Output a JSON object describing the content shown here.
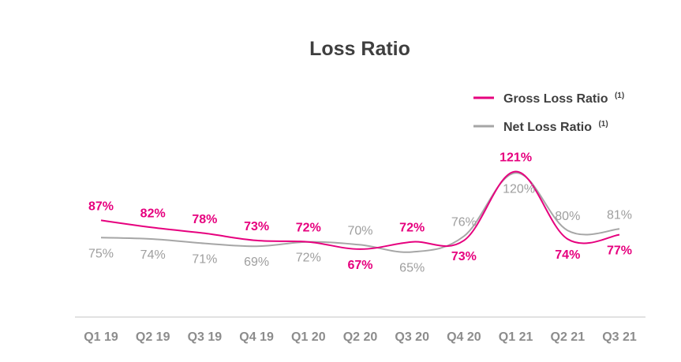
{
  "chart_data": {
    "type": "line",
    "title": "Loss Ratio",
    "categories": [
      "Q1 19",
      "Q2 19",
      "Q3 19",
      "Q4 19",
      "Q1 20",
      "Q2 20",
      "Q3 20",
      "Q4 20",
      "Q1 21",
      "Q2 21",
      "Q3 21"
    ],
    "series": [
      {
        "name": "Gross Loss Ratio",
        "superscript": "(1)",
        "color": "#e6007e",
        "values": [
          87,
          82,
          78,
          73,
          72,
          67,
          72,
          73,
          121,
          74,
          77
        ],
        "labels": [
          "87%",
          "82%",
          "78%",
          "73%",
          "72%",
          "67%",
          "72%",
          "73%",
          "121%",
          "74%",
          "77%"
        ]
      },
      {
        "name": "Net Loss Ratio",
        "superscript": "(1)",
        "color": "#a6a6a6",
        "values": [
          75,
          74,
          71,
          69,
          72,
          70,
          65,
          76,
          120,
          80,
          81
        ],
        "labels": [
          "75%",
          "74%",
          "71%",
          "69%",
          "72%",
          "70%",
          "65%",
          "76%",
          "120%",
          "80%",
          "81%"
        ]
      }
    ],
    "legend_position": "top-right",
    "grid": false,
    "y_axis_visible": false
  }
}
